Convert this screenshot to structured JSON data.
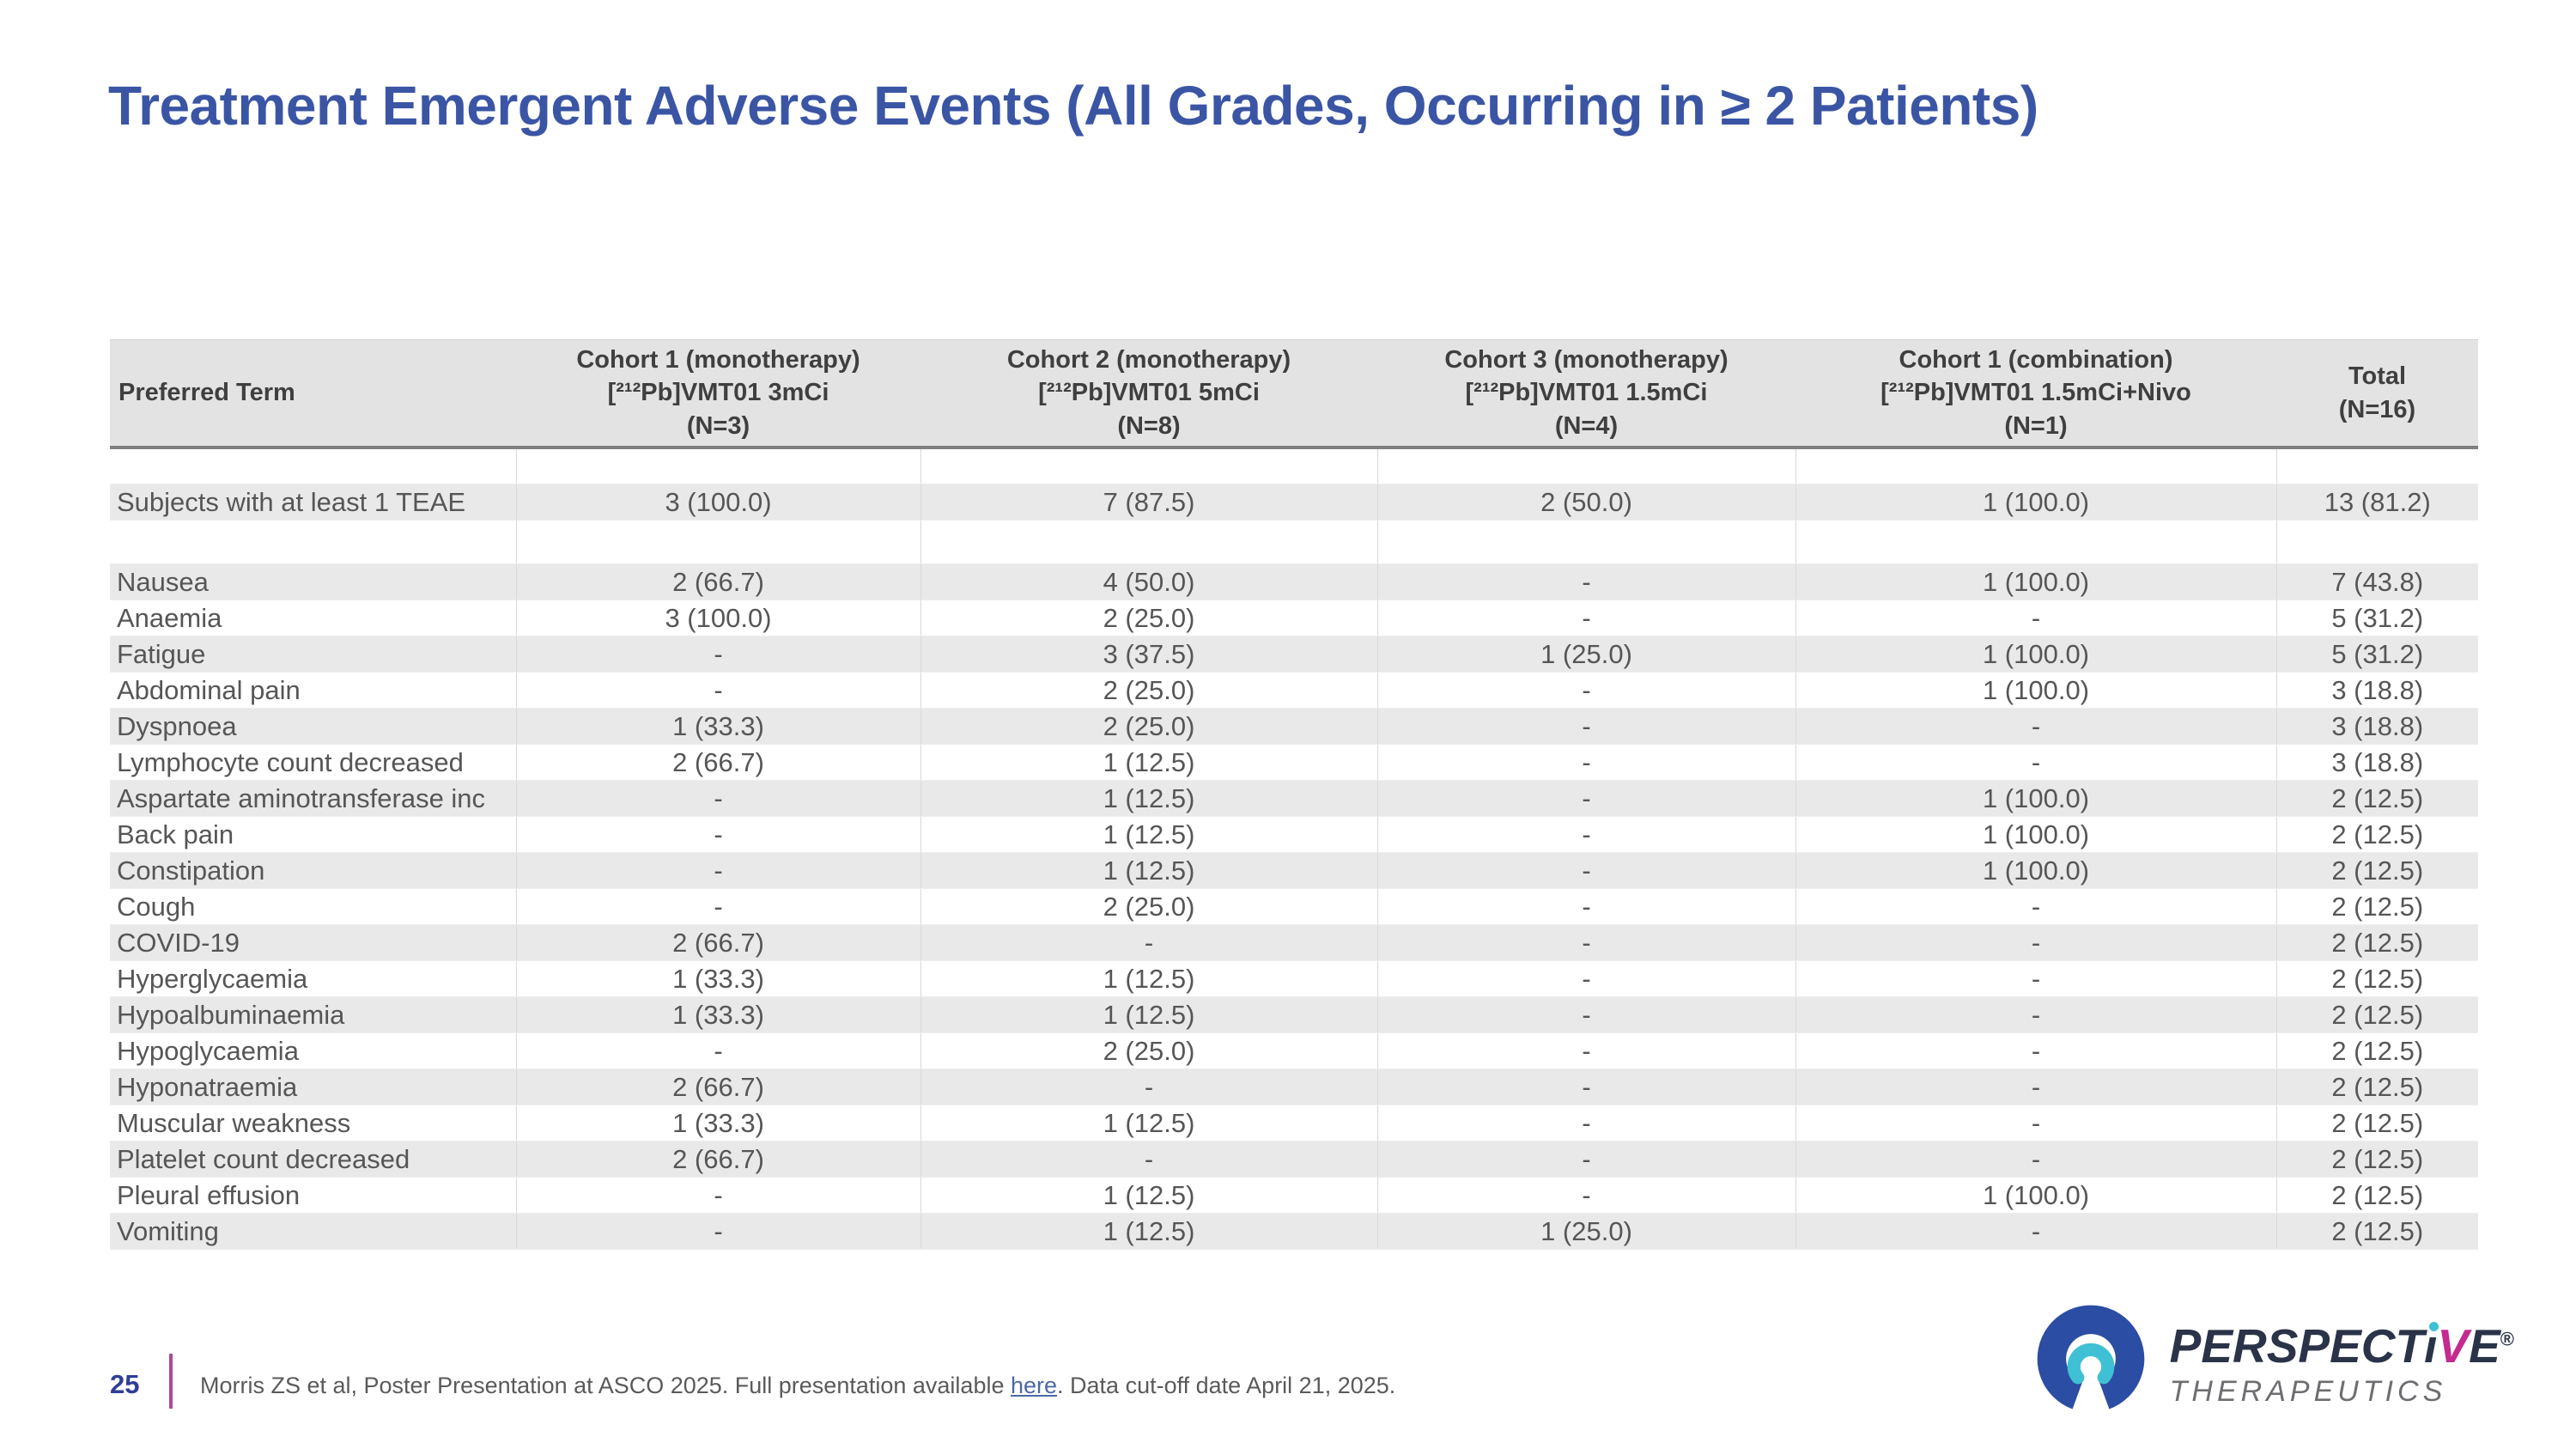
{
  "title": "Treatment Emergent Adverse Events (All Grades, Occurring in ≥ 2 Patients)",
  "colors": {
    "title_blue": "#3b55a5",
    "header_gray": "#e3e3e3",
    "stripe_gray": "#e9e9e9",
    "header_rule": "#7f7f7f",
    "page_number_blue": "#2e3d96",
    "divider_magenta": "#a94a9c",
    "link_blue": "#4a69a5",
    "brand_navy": "#2a3348",
    "brand_arc_blue": "#2b4da3",
    "brand_teal": "#3fc0d4",
    "brand_magenta": "#c42a90"
  },
  "table": {
    "columns": [
      {
        "label": "Preferred Term"
      },
      {
        "label": "Cohort 1 (monotherapy)\n[²¹²Pb]VMT01 3mCi\n(N=3)"
      },
      {
        "label": "Cohort 2 (monotherapy)\n[²¹²Pb]VMT01 5mCi\n(N=8)"
      },
      {
        "label": "Cohort 3 (monotherapy)\n[²¹²Pb]VMT01 1.5mCi\n(N=4)"
      },
      {
        "label": "Cohort 1 (combination)\n[²¹²Pb]VMT01 1.5mCi+Nivo\n(N=1)"
      },
      {
        "label": "Total\n(N=16)"
      }
    ],
    "rows": [
      {
        "kind": "spacer"
      },
      {
        "kind": "data",
        "shaded": true,
        "cells": [
          "Subjects with at least 1 TEAE",
          "3 (100.0)",
          "7 (87.5)",
          "2 (50.0)",
          "1 (100.0)",
          "13 (81.2)"
        ]
      },
      {
        "kind": "spacer-tall"
      },
      {
        "kind": "data",
        "shaded": true,
        "cells": [
          "Nausea",
          "2 (66.7)",
          "4 (50.0)",
          "-",
          "1 (100.0)",
          "7 (43.8)"
        ]
      },
      {
        "kind": "data",
        "shaded": false,
        "cells": [
          "Anaemia",
          "3 (100.0)",
          "2 (25.0)",
          "-",
          "-",
          "5 (31.2)"
        ]
      },
      {
        "kind": "data",
        "shaded": true,
        "cells": [
          "Fatigue",
          "-",
          "3 (37.5)",
          "1 (25.0)",
          "1 (100.0)",
          "5 (31.2)"
        ]
      },
      {
        "kind": "data",
        "shaded": false,
        "cells": [
          "Abdominal pain",
          "-",
          "2 (25.0)",
          "-",
          "1 (100.0)",
          "3 (18.8)"
        ]
      },
      {
        "kind": "data",
        "shaded": true,
        "cells": [
          "Dyspnoea",
          "1 (33.3)",
          "2 (25.0)",
          "-",
          "-",
          "3 (18.8)"
        ]
      },
      {
        "kind": "data",
        "shaded": false,
        "cells": [
          "Lymphocyte count decreased",
          "2 (66.7)",
          "1 (12.5)",
          "-",
          "-",
          "3 (18.8)"
        ]
      },
      {
        "kind": "data",
        "shaded": true,
        "cells": [
          "Aspartate aminotransferase inc",
          "-",
          "1 (12.5)",
          "-",
          "1 (100.0)",
          "2 (12.5)"
        ]
      },
      {
        "kind": "data",
        "shaded": false,
        "cells": [
          "Back pain",
          "-",
          "1 (12.5)",
          "-",
          "1 (100.0)",
          "2 (12.5)"
        ]
      },
      {
        "kind": "data",
        "shaded": true,
        "cells": [
          "Constipation",
          "-",
          "1 (12.5)",
          "-",
          "1 (100.0)",
          "2 (12.5)"
        ]
      },
      {
        "kind": "data",
        "shaded": false,
        "cells": [
          "Cough",
          "-",
          "2 (25.0)",
          "-",
          "-",
          "2 (12.5)"
        ]
      },
      {
        "kind": "data",
        "shaded": true,
        "cells": [
          "COVID-19",
          "2 (66.7)",
          "-",
          "-",
          "-",
          "2 (12.5)"
        ]
      },
      {
        "kind": "data",
        "shaded": false,
        "cells": [
          "Hyperglycaemia",
          "1 (33.3)",
          "1 (12.5)",
          "-",
          "-",
          "2 (12.5)"
        ]
      },
      {
        "kind": "data",
        "shaded": true,
        "cells": [
          "Hypoalbuminaemia",
          "1 (33.3)",
          "1 (12.5)",
          "-",
          "-",
          "2 (12.5)"
        ]
      },
      {
        "kind": "data",
        "shaded": false,
        "cells": [
          "Hypoglycaemia",
          "-",
          "2 (25.0)",
          "-",
          "-",
          "2 (12.5)"
        ]
      },
      {
        "kind": "data",
        "shaded": true,
        "cells": [
          "Hyponatraemia",
          "2 (66.7)",
          "-",
          "-",
          "-",
          "2 (12.5)"
        ]
      },
      {
        "kind": "data",
        "shaded": false,
        "cells": [
          "Muscular weakness",
          "1 (33.3)",
          "1 (12.5)",
          "-",
          "-",
          "2 (12.5)"
        ]
      },
      {
        "kind": "data",
        "shaded": true,
        "cells": [
          "Platelet count decreased",
          "2 (66.7)",
          "-",
          "-",
          "-",
          "2 (12.5)"
        ]
      },
      {
        "kind": "data",
        "shaded": false,
        "cells": [
          "Pleural effusion",
          "-",
          "1 (12.5)",
          "-",
          "1 (100.0)",
          "2 (12.5)"
        ]
      },
      {
        "kind": "data",
        "shaded": true,
        "cells": [
          "Vomiting",
          "-",
          "1 (12.5)",
          "1 (25.0)",
          "-",
          "2 (12.5)"
        ]
      }
    ]
  },
  "footer": {
    "page_number": "25",
    "citation_prefix": "Morris ZS et al, Poster Presentation at ASCO 2025. Full presentation available ",
    "link_text": "here",
    "citation_suffix": ". Data cut-off date April 21, 2025."
  },
  "logo": {
    "part1": "PERSPECT",
    "part_i": "ı",
    "part_v": "V",
    "part_e": "E",
    "registered": "®",
    "subtitle": "THERAPEUTICS"
  }
}
